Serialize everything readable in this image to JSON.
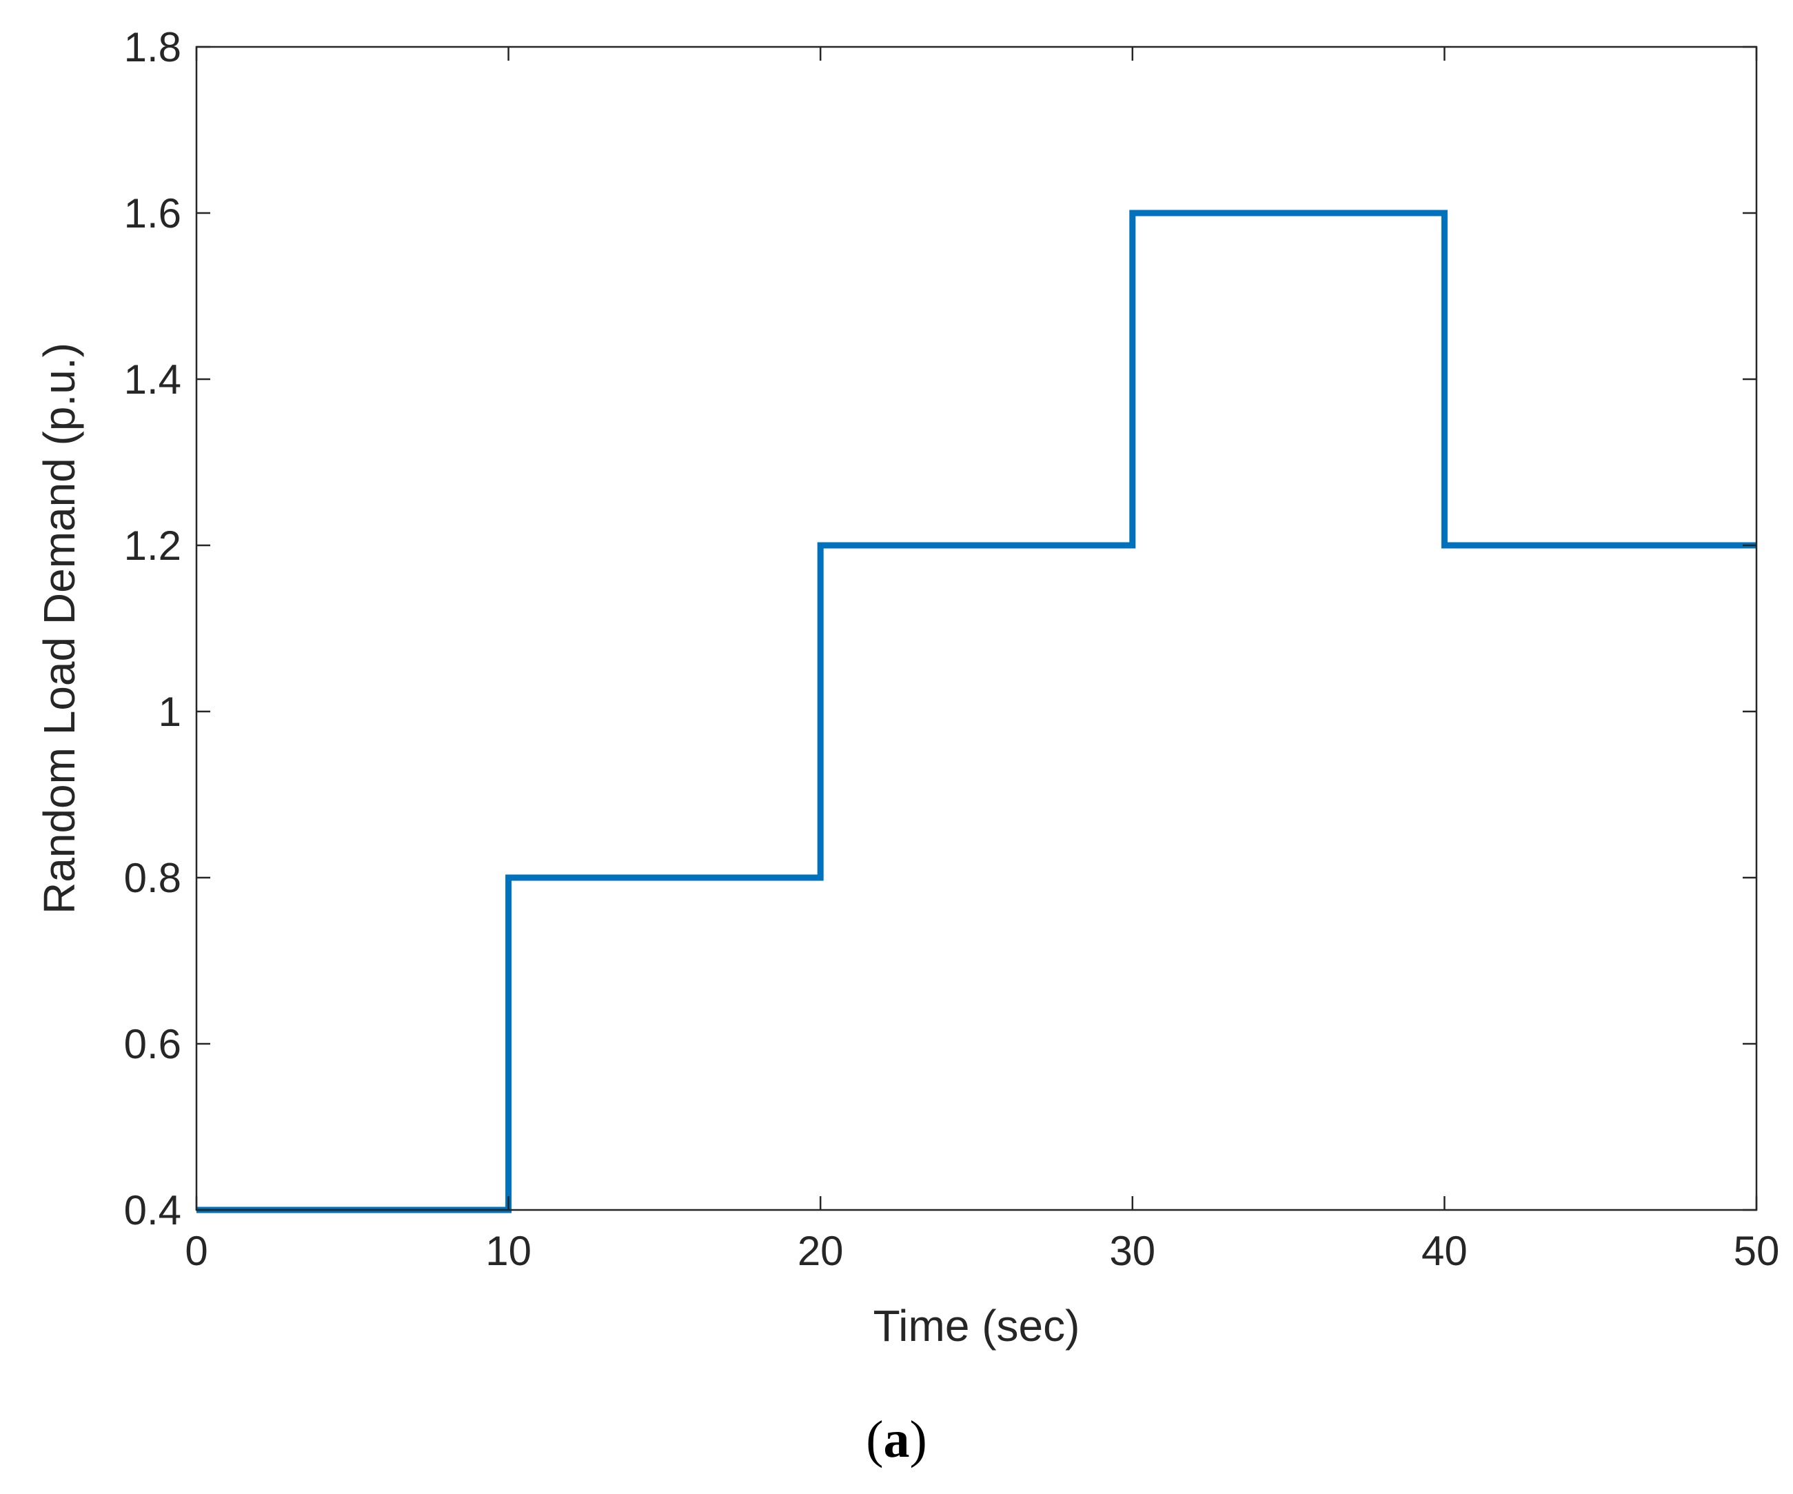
{
  "chart_data": {
    "type": "line",
    "title": "",
    "xlabel": "Time (sec)",
    "ylabel": "Random Load Demand (p.u.)",
    "xlim": [
      0,
      50
    ],
    "ylim": [
      0.4,
      1.8
    ],
    "xticks": [
      0,
      10,
      20,
      30,
      40,
      50
    ],
    "xtick_labels": [
      "0",
      "10",
      "20",
      "30",
      "40",
      "50"
    ],
    "yticks": [
      0.4,
      0.6,
      0.8,
      1.0,
      1.2,
      1.4,
      1.6,
      1.8
    ],
    "ytick_labels": [
      "0.4",
      "0.6",
      "0.8",
      "1",
      "1.2",
      "1.4",
      "1.6",
      "1.8"
    ],
    "grid": false,
    "legend": "none",
    "step": true,
    "series": [
      {
        "color": "#0072BD",
        "x": [
          0,
          10,
          10,
          20,
          20,
          30,
          30,
          40,
          40,
          50
        ],
        "y": [
          0.4,
          0.4,
          0.8,
          0.8,
          1.2,
          1.2,
          1.6,
          1.6,
          1.2,
          1.2
        ]
      }
    ]
  },
  "caption": {
    "open": "(",
    "letter": "a",
    "close": ")"
  }
}
